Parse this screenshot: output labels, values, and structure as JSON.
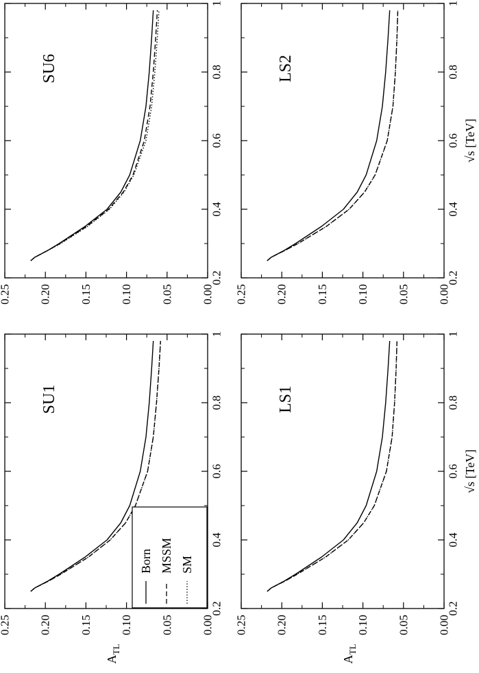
{
  "chart_data": {
    "type": "line",
    "x_axis_label": "√s  [TeV]",
    "y_axis_label": "A",
    "y_axis_label_sub": "TL",
    "xlim": [
      0.2,
      1.0
    ],
    "ylim": [
      0.0,
      0.25
    ],
    "x_ticks": [
      "0.2",
      "0.4",
      "0.6",
      "0.8",
      "1"
    ],
    "y_ticks": [
      "0.00",
      "0.05",
      "0.10",
      "0.15",
      "0.20",
      "0.25"
    ],
    "grid": false,
    "legend": {
      "location": "panel SU1, bottom-left",
      "entries": [
        {
          "name": "Born",
          "style": "solid"
        },
        {
          "name": "MSSM",
          "style": "dashed"
        },
        {
          "name": "SM",
          "style": "dotted"
        }
      ]
    },
    "panels": [
      {
        "label": "SU1",
        "series": [
          {
            "name": "Born",
            "style": "solid",
            "x": [
              0.25,
              0.26,
              0.28,
              0.3,
              0.35,
              0.4,
              0.45,
              0.5,
              0.6,
              0.7,
              0.8,
              0.9,
              0.98
            ],
            "y": [
              0.218,
              0.213,
              0.197,
              0.183,
              0.151,
              0.124,
              0.107,
              0.096,
              0.083,
              0.076,
              0.072,
              0.069,
              0.067
            ]
          },
          {
            "name": "MSSM",
            "style": "dashed",
            "x": [
              0.25,
              0.26,
              0.28,
              0.3,
              0.35,
              0.4,
              0.45,
              0.5,
              0.6,
              0.7,
              0.8,
              0.9,
              0.98
            ],
            "y": [
              0.218,
              0.213,
              0.196,
              0.181,
              0.147,
              0.12,
              0.101,
              0.089,
              0.074,
              0.067,
              0.063,
              0.06,
              0.058
            ]
          },
          {
            "name": "SM",
            "style": "dotted",
            "x": [
              0.25,
              0.26,
              0.28,
              0.3,
              0.35,
              0.4,
              0.45,
              0.5,
              0.6,
              0.7,
              0.8,
              0.9,
              0.98
            ],
            "y": [
              0.218,
              0.213,
              0.196,
              0.181,
              0.147,
              0.12,
              0.101,
              0.089,
              0.074,
              0.067,
              0.063,
              0.06,
              0.058
            ]
          }
        ]
      },
      {
        "label": "SU6",
        "series": [
          {
            "name": "Born",
            "style": "solid",
            "x": [
              0.25,
              0.26,
              0.28,
              0.3,
              0.35,
              0.4,
              0.45,
              0.5,
              0.6,
              0.7,
              0.8,
              0.9,
              0.98
            ],
            "y": [
              0.218,
              0.213,
              0.197,
              0.183,
              0.151,
              0.124,
              0.107,
              0.096,
              0.083,
              0.076,
              0.072,
              0.069,
              0.067
            ]
          },
          {
            "name": "MSSM",
            "style": "dashed",
            "x": [
              0.25,
              0.26,
              0.28,
              0.3,
              0.35,
              0.4,
              0.45,
              0.5,
              0.6,
              0.7,
              0.8,
              0.9,
              0.98
            ],
            "y": [
              0.218,
              0.213,
              0.197,
              0.182,
              0.149,
              0.122,
              0.104,
              0.092,
              0.078,
              0.071,
              0.067,
              0.064,
              0.062
            ]
          },
          {
            "name": "SM",
            "style": "dotted",
            "x": [
              0.25,
              0.26,
              0.28,
              0.3,
              0.35,
              0.4,
              0.45,
              0.5,
              0.6,
              0.7,
              0.8,
              0.9,
              0.98
            ],
            "y": [
              0.218,
              0.213,
              0.197,
              0.181,
              0.148,
              0.121,
              0.103,
              0.091,
              0.076,
              0.069,
              0.065,
              0.062,
              0.06
            ]
          }
        ]
      },
      {
        "label": "LS1",
        "series": [
          {
            "name": "Born",
            "style": "solid",
            "x": [
              0.25,
              0.26,
              0.28,
              0.3,
              0.35,
              0.4,
              0.45,
              0.5,
              0.6,
              0.7,
              0.8,
              0.9,
              0.98
            ],
            "y": [
              0.218,
              0.213,
              0.197,
              0.183,
              0.151,
              0.124,
              0.107,
              0.096,
              0.083,
              0.076,
              0.072,
              0.069,
              0.067
            ]
          },
          {
            "name": "MSSM",
            "style": "dashed",
            "x": [
              0.25,
              0.26,
              0.28,
              0.3,
              0.35,
              0.4,
              0.45,
              0.5,
              0.6,
              0.7,
              0.8,
              0.9,
              0.98
            ],
            "y": [
              0.218,
              0.213,
              0.196,
              0.181,
              0.146,
              0.118,
              0.099,
              0.086,
              0.071,
              0.064,
              0.061,
              0.059,
              0.058
            ]
          },
          {
            "name": "SM",
            "style": "dotted",
            "x": [
              0.25,
              0.26,
              0.28,
              0.3,
              0.35,
              0.4,
              0.45,
              0.5,
              0.6,
              0.7,
              0.8,
              0.9,
              0.98
            ],
            "y": [
              0.218,
              0.213,
              0.196,
              0.181,
              0.146,
              0.118,
              0.099,
              0.086,
              0.071,
              0.064,
              0.061,
              0.059,
              0.058
            ]
          }
        ]
      },
      {
        "label": "LS2",
        "series": [
          {
            "name": "Born",
            "style": "solid",
            "x": [
              0.25,
              0.26,
              0.28,
              0.3,
              0.35,
              0.4,
              0.45,
              0.5,
              0.6,
              0.7,
              0.8,
              0.9,
              0.98
            ],
            "y": [
              0.218,
              0.213,
              0.197,
              0.183,
              0.151,
              0.124,
              0.107,
              0.096,
              0.083,
              0.076,
              0.072,
              0.069,
              0.067
            ]
          },
          {
            "name": "MSSM",
            "style": "dashed",
            "x": [
              0.25,
              0.26,
              0.28,
              0.3,
              0.35,
              0.4,
              0.45,
              0.5,
              0.6,
              0.7,
              0.8,
              0.9,
              0.98
            ],
            "y": [
              0.218,
              0.213,
              0.196,
              0.18,
              0.145,
              0.117,
              0.098,
              0.085,
              0.07,
              0.063,
              0.06,
              0.058,
              0.057
            ]
          },
          {
            "name": "SM",
            "style": "dotted",
            "x": [
              0.25,
              0.26,
              0.28,
              0.3,
              0.35,
              0.4,
              0.45,
              0.5,
              0.6,
              0.7,
              0.8,
              0.9,
              0.98
            ],
            "y": [
              0.218,
              0.213,
              0.196,
              0.18,
              0.145,
              0.117,
              0.098,
              0.085,
              0.07,
              0.063,
              0.06,
              0.058,
              0.057
            ]
          }
        ]
      }
    ]
  }
}
